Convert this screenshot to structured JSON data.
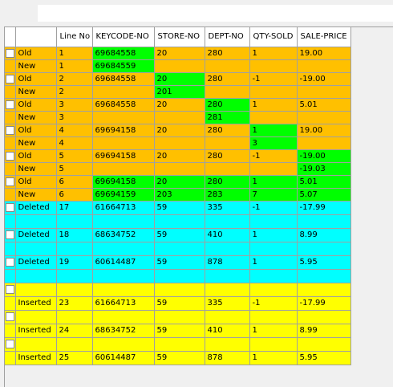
{
  "columns": [
    "",
    "",
    "Line No",
    "KEYCODE-NO",
    "STORE-NO",
    "DEPT-NO",
    "QTY-SOLD",
    "SALE-PRICE"
  ],
  "colors": {
    "changed": "#ffc000",
    "deleted": "#00ffff",
    "inserted": "#ffff00",
    "highlight": "#00ff00"
  },
  "rows": [
    {
      "status": "changed",
      "checkbox": true,
      "cells": [
        "Old",
        "1",
        "69684558",
        "20",
        "280",
        "1",
        "19.00"
      ],
      "hl": [
        2
      ]
    },
    {
      "status": "changed",
      "checkbox": false,
      "cells": [
        "New",
        "1",
        "69684559",
        "",
        "",
        "",
        ""
      ],
      "hl": [
        2
      ]
    },
    {
      "status": "changed",
      "checkbox": true,
      "cells": [
        "Old",
        "2",
        "69684558",
        "20",
        "280",
        "-1",
        "-19.00"
      ],
      "hl": [
        3
      ]
    },
    {
      "status": "changed",
      "checkbox": false,
      "cells": [
        "New",
        "2",
        "",
        "201",
        "",
        "",
        ""
      ],
      "hl": [
        3
      ]
    },
    {
      "status": "changed",
      "checkbox": true,
      "cells": [
        "Old",
        "3",
        "69684558",
        "20",
        "280",
        "1",
        "5.01"
      ],
      "hl": [
        4
      ]
    },
    {
      "status": "changed",
      "checkbox": false,
      "cells": [
        "New",
        "3",
        "",
        "",
        "281",
        "",
        ""
      ],
      "hl": [
        4
      ]
    },
    {
      "status": "changed",
      "checkbox": true,
      "cells": [
        "Old",
        "4",
        "69694158",
        "20",
        "280",
        "1",
        "19.00"
      ],
      "hl": [
        5
      ]
    },
    {
      "status": "changed",
      "checkbox": false,
      "cells": [
        "New",
        "4",
        "",
        "",
        "",
        "3",
        ""
      ],
      "hl": [
        5
      ]
    },
    {
      "status": "changed",
      "checkbox": true,
      "cells": [
        "Old",
        "5",
        "69694158",
        "20",
        "280",
        "-1",
        "-19.00"
      ],
      "hl": [
        6
      ]
    },
    {
      "status": "changed",
      "checkbox": false,
      "cells": [
        "New",
        "5",
        "",
        "",
        "",
        "",
        "-19.03"
      ],
      "hl": [
        6
      ]
    },
    {
      "status": "changed",
      "checkbox": true,
      "cells": [
        "Old",
        "6",
        "69694158",
        "20",
        "280",
        "1",
        "5.01"
      ],
      "hl": [
        2,
        3,
        4,
        5,
        6
      ]
    },
    {
      "status": "changed",
      "checkbox": false,
      "cells": [
        "New",
        "6",
        "69694159",
        "203",
        "283",
        "7",
        "5.07"
      ],
      "hl": [
        2,
        3,
        4,
        5,
        6
      ]
    },
    {
      "status": "deleted",
      "checkbox": true,
      "cells": [
        "Deleted",
        "17",
        "61664713",
        "59",
        "335",
        "-1",
        "-17.99"
      ],
      "hl": [],
      "tall": true
    },
    {
      "status": "deleted",
      "checkbox": false,
      "cells": [
        "",
        "",
        "",
        "",
        "",
        "",
        ""
      ],
      "hl": [],
      "tall": true
    },
    {
      "status": "deleted",
      "checkbox": true,
      "cells": [
        "Deleted",
        "18",
        "68634752",
        "59",
        "410",
        "1",
        "8.99"
      ],
      "hl": [],
      "tall": true
    },
    {
      "status": "deleted",
      "checkbox": false,
      "cells": [
        "",
        "",
        "",
        "",
        "",
        "",
        ""
      ],
      "hl": [],
      "tall": true
    },
    {
      "status": "deleted",
      "checkbox": true,
      "cells": [
        "Deleted",
        "19",
        "60614487",
        "59",
        "878",
        "1",
        "5.95"
      ],
      "hl": [],
      "tall": true
    },
    {
      "status": "deleted",
      "checkbox": false,
      "cells": [
        "",
        "",
        "",
        "",
        "",
        "",
        ""
      ],
      "hl": [],
      "tall": true
    },
    {
      "status": "inserted",
      "checkbox": true,
      "cells": [
        "",
        "",
        "",
        "",
        "",
        "",
        ""
      ],
      "hl": [],
      "tall": true
    },
    {
      "status": "inserted",
      "checkbox": false,
      "cells": [
        "Inserted",
        "23",
        "61664713",
        "59",
        "335",
        "-1",
        "-17.99"
      ],
      "hl": [],
      "tall": true
    },
    {
      "status": "inserted",
      "checkbox": true,
      "cells": [
        "",
        "",
        "",
        "",
        "",
        "",
        ""
      ],
      "hl": [],
      "tall": true
    },
    {
      "status": "inserted",
      "checkbox": false,
      "cells": [
        "Inserted",
        "24",
        "68634752",
        "59",
        "410",
        "1",
        "8.99"
      ],
      "hl": [],
      "tall": true
    },
    {
      "status": "inserted",
      "checkbox": true,
      "cells": [
        "",
        "",
        "",
        "",
        "",
        "",
        ""
      ],
      "hl": [],
      "tall": true
    },
    {
      "status": "inserted",
      "checkbox": false,
      "cells": [
        "Inserted",
        "25",
        "60614487",
        "59",
        "878",
        "1",
        "5.95"
      ],
      "hl": [],
      "tall": true
    }
  ]
}
